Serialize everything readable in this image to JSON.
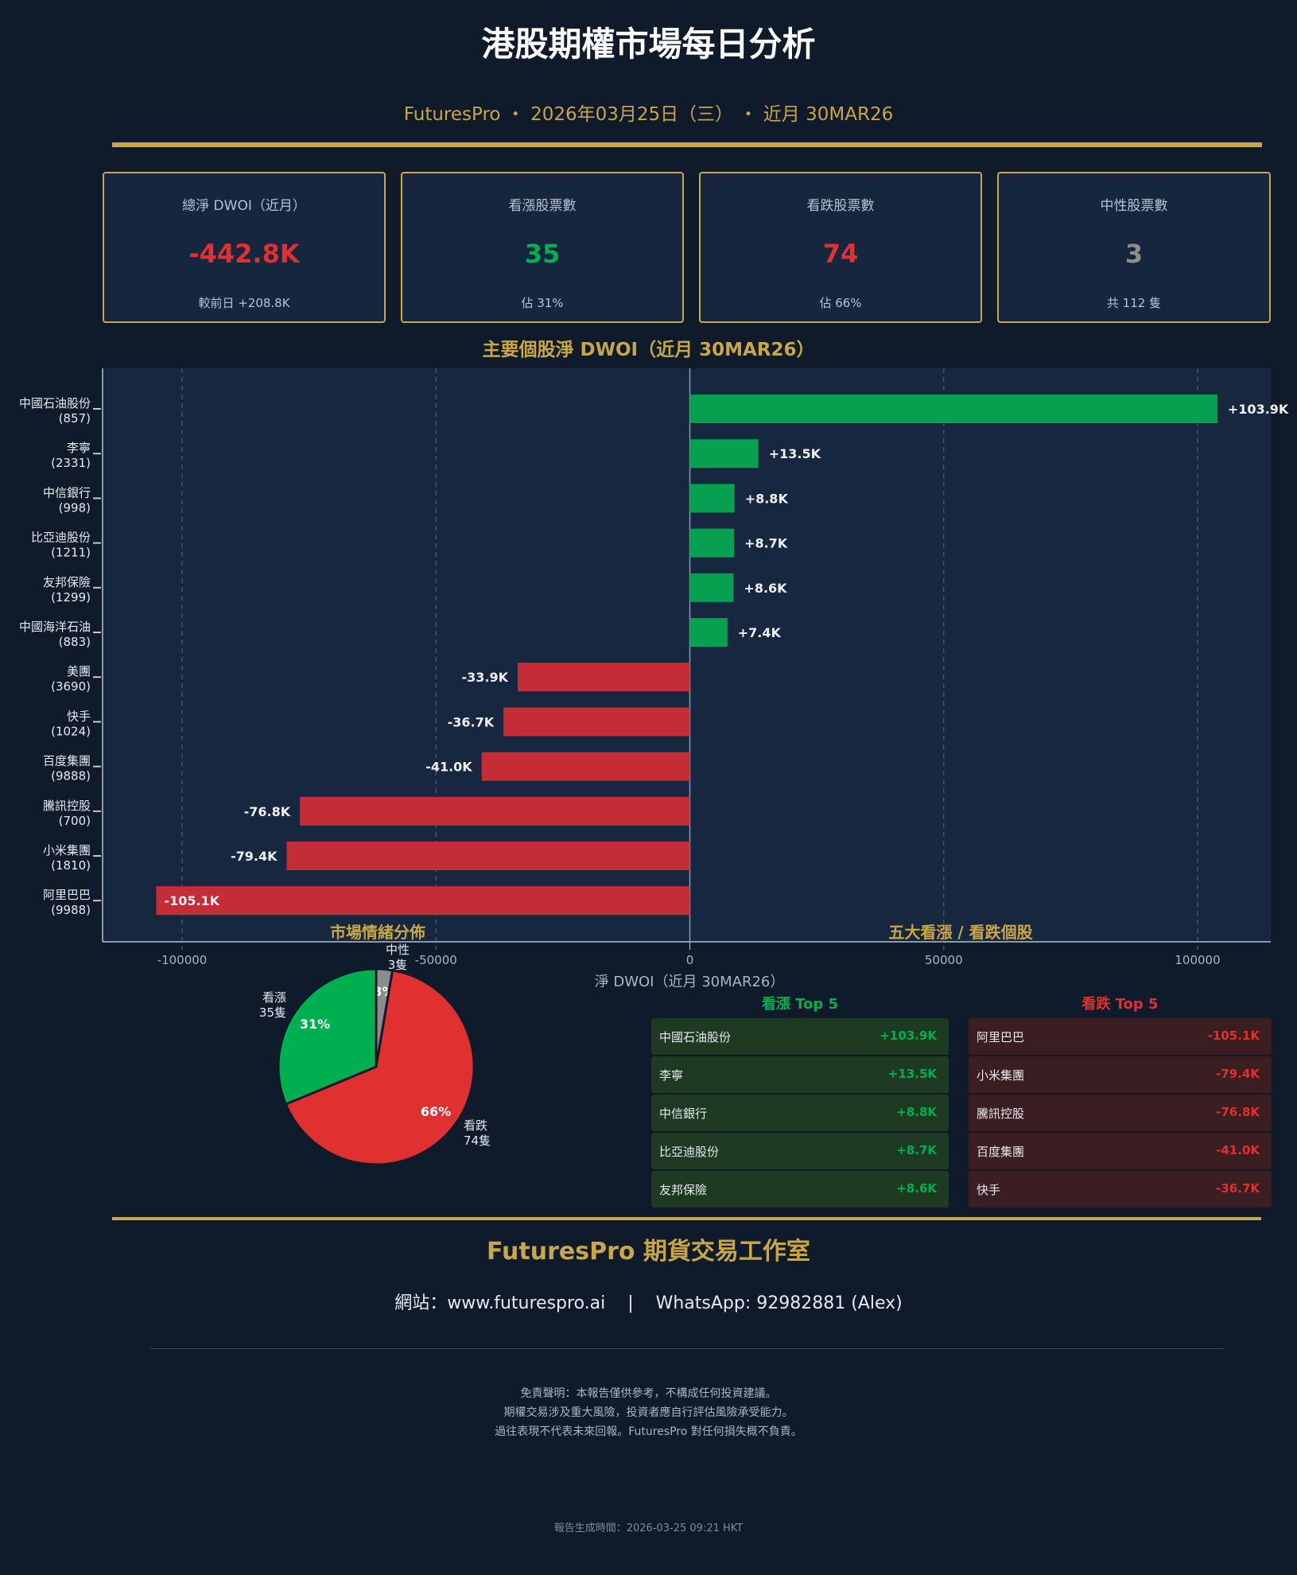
{
  "header": {
    "title": "港股期權市場每日分析",
    "subtitle": "FuturesPro ・ 2026年03月25日（三） ・ 近月 30MAR26"
  },
  "cards": [
    {
      "label": "總淨 DWOI（近月）",
      "value": "-442.8K",
      "sub": "較前日 +208.8K",
      "color": "#e03030"
    },
    {
      "label": "看漲股票數",
      "value": "35",
      "sub": "佔 31%",
      "color": "#00b050"
    },
    {
      "label": "看跌股票數",
      "value": "74",
      "sub": "佔 66%",
      "color": "#e03030"
    },
    {
      "label": "中性股票數",
      "value": "3",
      "sub": "共 112 隻",
      "color": "#8c8c8c"
    }
  ],
  "chart_data": [
    {
      "type": "bar",
      "orientation": "horizontal",
      "title": "主要個股淨 DWOI（近月 30MAR26）",
      "xlabel": "淨 DWOI（近月 30MAR26）",
      "xlim": [
        -115000,
        115000
      ],
      "xticks": [
        "-100000",
        "-50000",
        "0",
        "50000",
        "100000"
      ],
      "xtick_values": [
        -100000,
        -50000,
        0,
        50000,
        100000
      ],
      "grid": true,
      "categories": [
        {
          "name": "中國石油股份",
          "code": "(857)"
        },
        {
          "name": "李寧",
          "code": "(2331)"
        },
        {
          "name": "中信銀行",
          "code": "(998)"
        },
        {
          "name": "比亞迪股份",
          "code": "(1211)"
        },
        {
          "name": "友邦保險",
          "code": "(1299)"
        },
        {
          "name": "中國海洋石油",
          "code": "(883)"
        },
        {
          "name": "美團",
          "code": "(3690)"
        },
        {
          "name": "快手",
          "code": "(1024)"
        },
        {
          "name": "百度集團",
          "code": "(9888)"
        },
        {
          "name": "騰訊控股",
          "code": "(700)"
        },
        {
          "name": "小米集團",
          "code": "(1810)"
        },
        {
          "name": "阿里巴巴",
          "code": "(9988)"
        }
      ],
      "values": [
        103900,
        13500,
        8800,
        8700,
        8600,
        7400,
        -33900,
        -36700,
        -41000,
        -76800,
        -79400,
        -105100
      ],
      "labels": [
        "+103.9K",
        "+13.5K",
        "+8.8K",
        "+8.7K",
        "+8.6K",
        "+7.4K",
        "-33.9K",
        "-36.7K",
        "-41.0K",
        "-76.8K",
        "-79.4K",
        "-105.1K"
      ],
      "colors": {
        "positive": "#06a050",
        "negative": "#c42d36"
      }
    },
    {
      "type": "pie",
      "title": "市場情緒分佈",
      "slices": [
        {
          "name": "中性",
          "count_label": "3隻",
          "value": 3,
          "pct_label": "3%",
          "color": "#8c8c8c"
        },
        {
          "name": "看跌",
          "count_label": "74隻",
          "value": 74,
          "pct_label": "66%",
          "color": "#e03030"
        },
        {
          "name": "看漲",
          "count_label": "35隻",
          "value": 35,
          "pct_label": "31%",
          "color": "#00b050"
        }
      ]
    }
  ],
  "top5": {
    "title": "五大看漲 / 看跌個股",
    "bull": {
      "header": "看漲 Top 5",
      "rows": [
        {
          "name": "中國石油股份",
          "value": "+103.9K"
        },
        {
          "name": "李寧",
          "value": "+13.5K"
        },
        {
          "name": "中信銀行",
          "value": "+8.8K"
        },
        {
          "name": "比亞迪股份",
          "value": "+8.7K"
        },
        {
          "name": "友邦保險",
          "value": "+8.6K"
        }
      ]
    },
    "bear": {
      "header": "看跌 Top 5",
      "rows": [
        {
          "name": "阿里巴巴",
          "value": "-105.1K"
        },
        {
          "name": "小米集團",
          "value": "-79.4K"
        },
        {
          "name": "騰訊控股",
          "value": "-76.8K"
        },
        {
          "name": "百度集團",
          "value": "-41.0K"
        },
        {
          "name": "快手",
          "value": "-36.7K"
        }
      ]
    }
  },
  "footer": {
    "brand": "FuturesPro 期貨交易工作室",
    "contact": "網站：www.futurespro.ai    |    WhatsApp: 92982881 (Alex)",
    "disclaimer": [
      "免責聲明：本報告僅供參考，不構成任何投資建議。",
      "期權交易涉及重大風險，投資者應自行評估風險承受能力。",
      "過往表現不代表未來回報。FuturesPro 對任何損失概不負責。"
    ],
    "generated": "報告生成時間：2026-03-25 09:21 HKT"
  }
}
